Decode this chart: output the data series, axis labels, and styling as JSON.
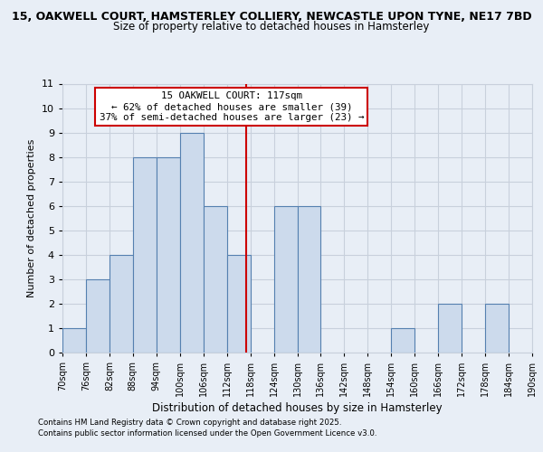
{
  "title_line1": "15, OAKWELL COURT, HAMSTERLEY COLLIERY, NEWCASTLE UPON TYNE, NE17 7BD",
  "title_line2": "Size of property relative to detached houses in Hamsterley",
  "xlabel": "Distribution of detached houses by size in Hamsterley",
  "ylabel": "Number of detached properties",
  "bin_labels": [
    "70sqm",
    "76sqm",
    "82sqm",
    "88sqm",
    "94sqm",
    "100sqm",
    "106sqm",
    "112sqm",
    "118sqm",
    "124sqm",
    "130sqm",
    "136sqm",
    "142sqm",
    "148sqm",
    "154sqm",
    "160sqm",
    "166sqm",
    "172sqm",
    "178sqm",
    "184sqm",
    "190sqm"
  ],
  "bin_edges": [
    70,
    76,
    82,
    88,
    94,
    100,
    106,
    112,
    118,
    124,
    130,
    136,
    142,
    148,
    154,
    160,
    166,
    172,
    178,
    184,
    190
  ],
  "counts": [
    1,
    3,
    4,
    8,
    8,
    9,
    6,
    4,
    0,
    6,
    6,
    0,
    0,
    0,
    1,
    0,
    2,
    0,
    2,
    0,
    0
  ],
  "bar_facecolor": "#ccdaec",
  "bar_edgecolor": "#5580b0",
  "grid_color": "#c8d0dc",
  "vline_x": 117,
  "vline_color": "#cc0000",
  "annotation_title": "15 OAKWELL COURT: 117sqm",
  "annotation_line2": "← 62% of detached houses are smaller (39)",
  "annotation_line3": "37% of semi-detached houses are larger (23) →",
  "annotation_box_edgecolor": "#cc0000",
  "ylim": [
    0,
    11
  ],
  "yticks": [
    0,
    1,
    2,
    3,
    4,
    5,
    6,
    7,
    8,
    9,
    10,
    11
  ],
  "footnote1": "Contains HM Land Registry data © Crown copyright and database right 2025.",
  "footnote2": "Contains public sector information licensed under the Open Government Licence v3.0.",
  "bg_color": "#e8eef6",
  "plot_bg_color": "#e8eef6"
}
